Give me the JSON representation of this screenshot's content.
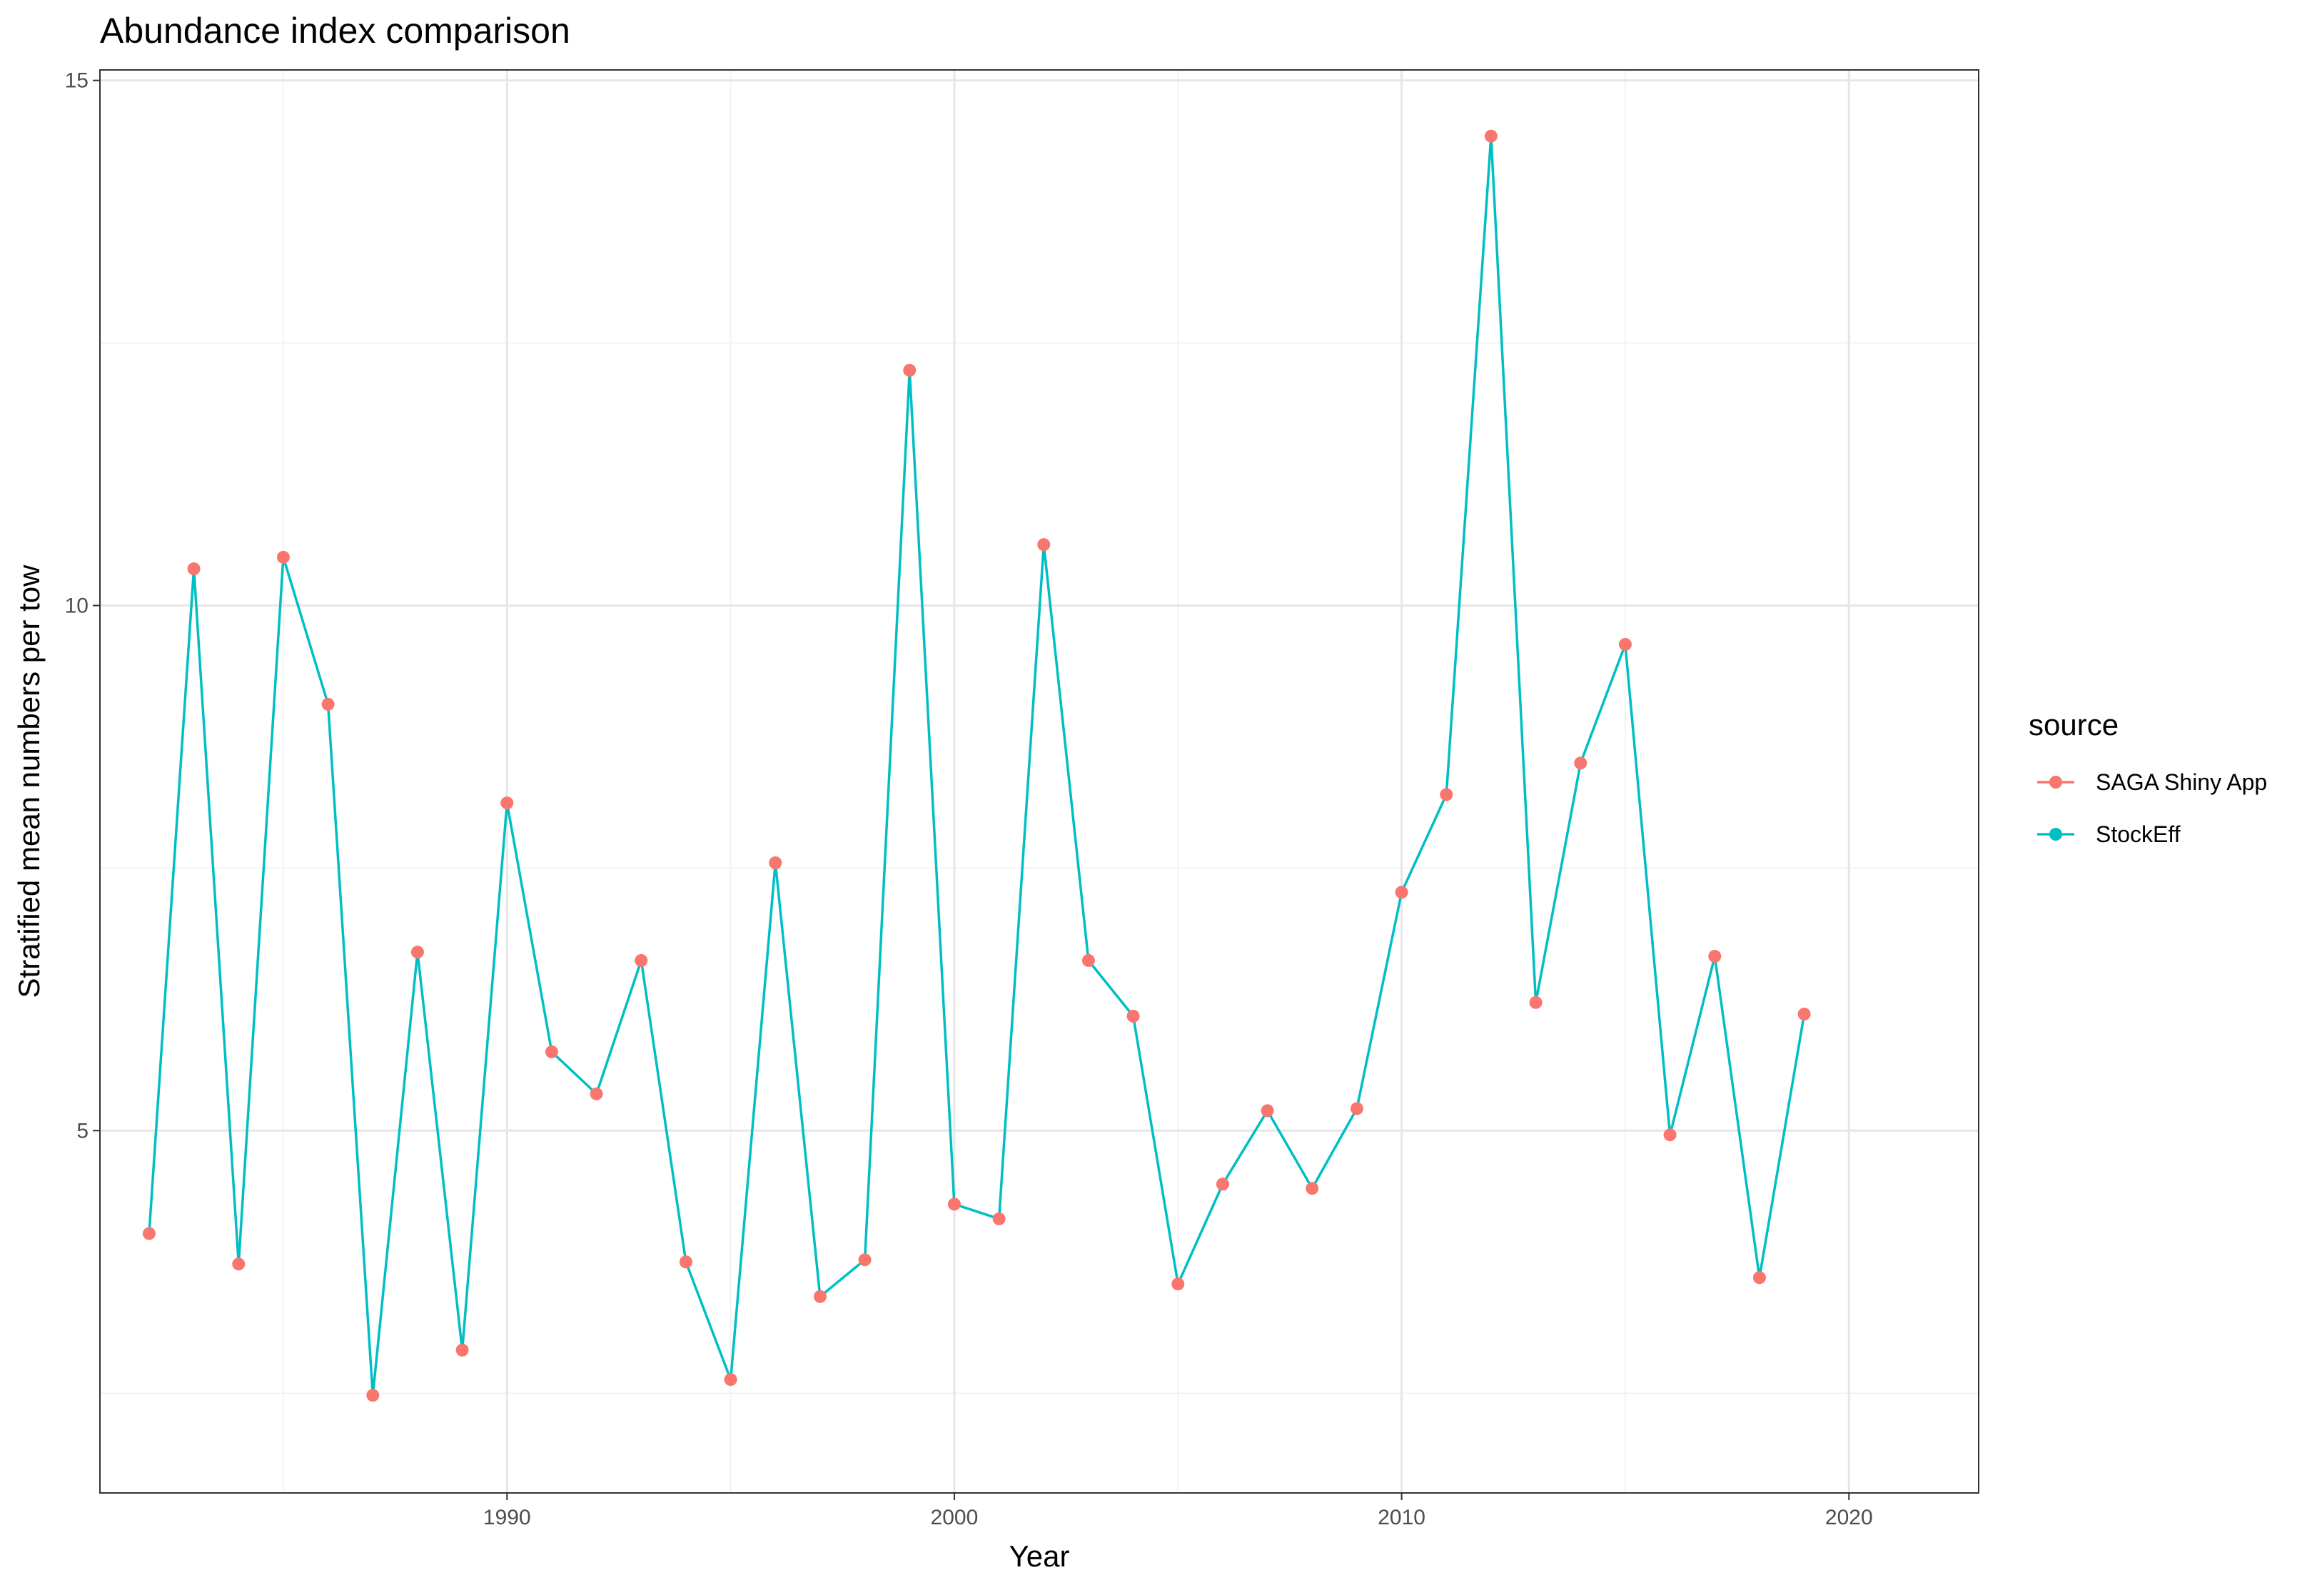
{
  "chart_data": {
    "type": "line",
    "title": "Abundance index comparison",
    "xlabel": "Year",
    "ylabel": "Stratified mean numbers per tow",
    "xlim": [
      1980.9,
      2022.9
    ],
    "ylim": [
      1.55,
      15.1
    ],
    "xticks": [
      1990,
      2000,
      2010,
      2020
    ],
    "yticks": [
      5,
      10,
      15
    ],
    "yminor": [
      2.5,
      7.5,
      12.5
    ],
    "xminor": [
      1985,
      1995,
      2005,
      2015
    ],
    "grid": true,
    "legend": {
      "title": "source",
      "position": "right",
      "entries": [
        {
          "name": "SAGA Shiny App",
          "color": "#F8766D"
        },
        {
          "name": "StockEff",
          "color": "#00BFC4"
        }
      ]
    },
    "x": [
      1982,
      1983,
      1984,
      1985,
      1986,
      1987,
      1988,
      1989,
      1990,
      1991,
      1992,
      1993,
      1994,
      1995,
      1996,
      1997,
      1998,
      1999,
      2000,
      2001,
      2002,
      2003,
      2004,
      2005,
      2006,
      2007,
      2008,
      2009,
      2010,
      2011,
      2012,
      2013,
      2014,
      2015,
      2016,
      2017,
      2018,
      2019
    ],
    "series": [
      {
        "name": "SAGA Shiny App",
        "color": "#F8766D",
        "style": "points",
        "values": [
          4.02,
          10.35,
          3.73,
          10.46,
          9.06,
          2.48,
          6.7,
          2.91,
          8.12,
          5.75,
          5.35,
          6.62,
          3.75,
          2.63,
          7.55,
          3.42,
          3.77,
          12.24,
          4.3,
          4.16,
          10.58,
          6.62,
          6.09,
          3.54,
          4.49,
          5.19,
          4.45,
          5.21,
          7.27,
          8.2,
          14.47,
          6.22,
          8.5,
          9.63,
          4.96,
          6.66,
          3.6,
          6.11
        ]
      },
      {
        "name": "StockEff",
        "color": "#00BFC4",
        "style": "line",
        "values": [
          4.02,
          10.35,
          3.73,
          10.46,
          9.06,
          2.48,
          6.7,
          2.91,
          8.12,
          5.75,
          5.35,
          6.62,
          3.75,
          2.63,
          7.55,
          3.42,
          3.77,
          12.24,
          4.3,
          4.16,
          10.58,
          6.62,
          6.09,
          3.54,
          4.49,
          5.19,
          4.45,
          5.21,
          7.27,
          8.2,
          14.47,
          6.22,
          8.5,
          9.63,
          4.96,
          6.66,
          3.6,
          6.11
        ]
      }
    ]
  }
}
